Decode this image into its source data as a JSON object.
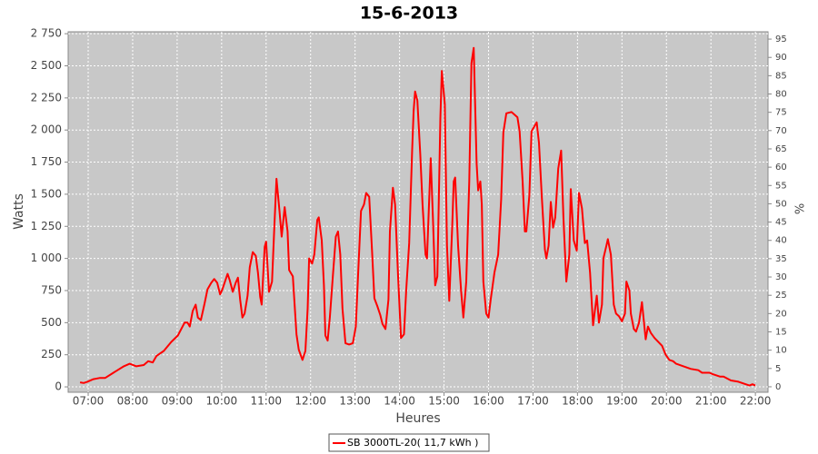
{
  "chart_data": {
    "type": "line",
    "title": "15-6-2013",
    "ylabel": "Watts",
    "y2label": "%",
    "xlabel": "Heures",
    "x": [
      "06:49",
      "06:54",
      "06:59",
      "07:07",
      "07:16",
      "07:23",
      "07:34",
      "07:48",
      "07:56",
      "08:05",
      "08:15",
      "08:21",
      "08:27",
      "08:32",
      "08:42",
      "08:52",
      "09:01",
      "09:10",
      "09:14",
      "09:17",
      "09:21",
      "09:25",
      "09:28",
      "09:32",
      "09:37",
      "09:41",
      "09:46",
      "09:50",
      "09:54",
      "09:58",
      "10:01",
      "10:08",
      "10:11",
      "10:15",
      "10:19",
      "10:22",
      "10:25",
      "10:28",
      "10:31",
      "10:35",
      "10:38",
      "10:42",
      "10:46",
      "10:49",
      "10:52",
      "10:54",
      "10:58",
      "11:00",
      "11:04",
      "11:08",
      "11:11",
      "11:14",
      "11:18",
      "11:21",
      "11:25",
      "11:29",
      "11:31",
      "11:36",
      "11:38",
      "11:41",
      "11:44",
      "11:49",
      "11:53",
      "11:56",
      "11:58",
      "12:02",
      "12:05",
      "12:09",
      "12:11",
      "12:15",
      "12:18",
      "12:20",
      "12:23",
      "12:26",
      "12:30",
      "12:34",
      "12:37",
      "12:40",
      "12:43",
      "12:47",
      "12:52",
      "12:57",
      "13:01",
      "13:04",
      "13:08",
      "13:12",
      "13:15",
      "13:19",
      "13:23",
      "13:26",
      "13:30",
      "13:34",
      "13:37",
      "13:41",
      "13:45",
      "13:47",
      "13:51",
      "13:54",
      "13:58",
      "14:02",
      "14:06",
      "14:09",
      "14:13",
      "14:17",
      "14:19",
      "14:21",
      "14:24",
      "14:28",
      "14:31",
      "14:35",
      "14:37",
      "14:40",
      "14:42",
      "14:45",
      "14:48",
      "14:51",
      "14:55",
      "14:57",
      "15:01",
      "15:04",
      "15:07",
      "15:11",
      "15:13",
      "15:15",
      "15:19",
      "15:23",
      "15:26",
      "15:30",
      "15:34",
      "15:37",
      "15:40",
      "15:44",
      "15:46",
      "15:49",
      "15:51",
      "15:53",
      "15:57",
      "16:00",
      "16:03",
      "16:08",
      "16:13",
      "16:17",
      "16:20",
      "16:24",
      "16:31",
      "16:39",
      "16:42",
      "16:46",
      "16:49",
      "16:51",
      "16:55",
      "16:58",
      "17:05",
      "17:08",
      "17:12",
      "17:16",
      "17:18",
      "17:21",
      "17:24",
      "17:27",
      "17:30",
      "17:34",
      "17:38",
      "17:41",
      "17:45",
      "17:49",
      "17:51",
      "17:55",
      "17:59",
      "18:02",
      "18:06",
      "18:10",
      "18:13",
      "18:17",
      "18:21",
      "18:23",
      "18:26",
      "18:29",
      "18:33",
      "18:35",
      "18:39",
      "18:41",
      "18:45",
      "18:49",
      "18:52",
      "18:56",
      "19:00",
      "19:04",
      "19:06",
      "19:10",
      "19:12",
      "19:16",
      "19:19",
      "19:23",
      "19:27",
      "19:29",
      "19:32",
      "19:35",
      "19:39",
      "19:44",
      "19:49",
      "19:54",
      "19:59",
      "20:04",
      "20:09",
      "20:13",
      "20:23",
      "20:33",
      "20:43",
      "20:48",
      "20:58",
      "21:02",
      "21:12",
      "21:17",
      "21:27",
      "21:37",
      "21:47",
      "21:52",
      "21:56",
      "22:00"
    ],
    "series": [
      {
        "name": "SB 3000TL-20( 11,7 kWh )",
        "color": "#ff0000",
        "values": [
          35,
          30,
          40,
          60,
          70,
          70,
          110,
          160,
          180,
          160,
          170,
          200,
          190,
          240,
          280,
          350,
          400,
          500,
          500,
          470,
          590,
          640,
          540,
          520,
          650,
          760,
          810,
          840,
          810,
          720,
          760,
          880,
          830,
          740,
          810,
          850,
          680,
          540,
          570,
          710,
          930,
          1050,
          1020,
          890,
          700,
          640,
          1090,
          1130,
          740,
          820,
          1240,
          1620,
          1370,
          1170,
          1400,
          1210,
          910,
          860,
          680,
          410,
          290,
          210,
          280,
          610,
          1000,
          960,
          1030,
          1300,
          1320,
          1140,
          790,
          400,
          360,
          540,
          860,
          1170,
          1210,
          1030,
          610,
          340,
          330,
          340,
          470,
          860,
          1370,
          1420,
          1510,
          1480,
          1050,
          690,
          630,
          560,
          490,
          450,
          680,
          1210,
          1550,
          1420,
          860,
          380,
          410,
          750,
          1120,
          1850,
          2150,
          2300,
          2230,
          1810,
          1420,
          1030,
          1000,
          1460,
          1780,
          1320,
          790,
          860,
          2090,
          2460,
          2200,
          1100,
          670,
          1240,
          1600,
          1630,
          1100,
          750,
          540,
          820,
          1600,
          2520,
          2640,
          1740,
          1530,
          1600,
          1420,
          820,
          570,
          540,
          680,
          890,
          1030,
          1460,
          1980,
          2130,
          2140,
          2100,
          1990,
          1600,
          1210,
          1210,
          1490,
          1990,
          2060,
          1900,
          1470,
          1070,
          1000,
          1100,
          1440,
          1240,
          1320,
          1700,
          1840,
          1320,
          820,
          1030,
          1540,
          1140,
          1060,
          1510,
          1390,
          1120,
          1140,
          890,
          480,
          570,
          710,
          500,
          640,
          1000,
          1100,
          1150,
          1030,
          640,
          570,
          550,
          510,
          570,
          820,
          750,
          570,
          450,
          430,
          500,
          660,
          540,
          370,
          470,
          420,
          380,
          350,
          320,
          250,
          210,
          200,
          180,
          160,
          140,
          130,
          110,
          110,
          100,
          80,
          80,
          50,
          40,
          20,
          10,
          20,
          10
        ]
      }
    ],
    "xlim": [
      "06:33",
      "22:17"
    ],
    "xticks": [
      "07:00",
      "08:00",
      "09:00",
      "10:00",
      "11:00",
      "12:00",
      "13:00",
      "14:00",
      "15:00",
      "16:00",
      "17:00",
      "18:00",
      "19:00",
      "20:00",
      "21:00",
      "22:00"
    ],
    "ylim": [
      -42,
      2765
    ],
    "yticks": [
      0,
      250,
      500,
      750,
      {
        "value": 1000,
        "label": "1 000"
      },
      {
        "value": 1250,
        "label": "1 250"
      },
      {
        "value": 1500,
        "label": "1 500"
      },
      {
        "value": 1750,
        "label": "1 750"
      },
      {
        "value": 2000,
        "label": "2 000"
      },
      {
        "value": 2250,
        "label": "2 250"
      },
      {
        "value": 2500,
        "label": "2 500"
      },
      {
        "value": 2750,
        "label": "2 750"
      }
    ],
    "y2lim": [
      -1.5,
      97
    ],
    "y2ticks": [
      0,
      5,
      10,
      15,
      20,
      25,
      30,
      35,
      40,
      45,
      50,
      55,
      60,
      65,
      70,
      75,
      80,
      85,
      90,
      95
    ],
    "grid": true,
    "legend": "bottom"
  }
}
